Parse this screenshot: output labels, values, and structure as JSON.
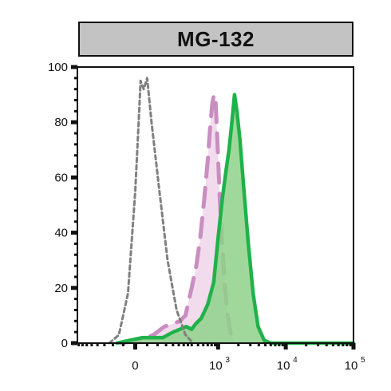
{
  "header": {
    "title": "MG-132"
  },
  "chart_data": {
    "type": "area",
    "title": "MG-132",
    "xlabel": "",
    "ylabel": "",
    "x_scale": "biexponential",
    "ylim": [
      0,
      100
    ],
    "y_ticks": [
      0,
      20,
      40,
      60,
      80,
      100
    ],
    "x_ticks": [
      {
        "value": 0,
        "base": "0",
        "exp": ""
      },
      {
        "value": 1000,
        "base": "10",
        "exp": "3"
      },
      {
        "value": 10000,
        "base": "10",
        "exp": "4"
      },
      {
        "value": 100000,
        "base": "10",
        "exp": "5"
      }
    ],
    "series": [
      {
        "name": "",
        "style": "dotted-line",
        "color": "#808080",
        "points": [
          [
            -120,
            0
          ],
          [
            -70,
            3
          ],
          [
            -30,
            18
          ],
          [
            0,
            55
          ],
          [
            15,
            82
          ],
          [
            22,
            95
          ],
          [
            35,
            92
          ],
          [
            50,
            96
          ],
          [
            70,
            80
          ],
          [
            110,
            55
          ],
          [
            160,
            30
          ],
          [
            230,
            12
          ],
          [
            320,
            3
          ],
          [
            420,
            0
          ]
        ]
      },
      {
        "name": "",
        "style": "dashed-filled",
        "color": "#c98ec0",
        "fill": "#efd5ea",
        "points": [
          [
            -60,
            0
          ],
          [
            20,
            1
          ],
          [
            80,
            3
          ],
          [
            140,
            6
          ],
          [
            200,
            7
          ],
          [
            260,
            8
          ],
          [
            320,
            10
          ],
          [
            400,
            20
          ],
          [
            470,
            28
          ],
          [
            540,
            38
          ],
          [
            620,
            52
          ],
          [
            700,
            66
          ],
          [
            760,
            78
          ],
          [
            820,
            87
          ],
          [
            870,
            90
          ],
          [
            920,
            87
          ],
          [
            980,
            72
          ],
          [
            1060,
            52
          ],
          [
            1140,
            38
          ],
          [
            1250,
            22
          ],
          [
            1380,
            10
          ],
          [
            1550,
            3
          ],
          [
            1800,
            0
          ]
        ]
      },
      {
        "name": "",
        "style": "solid-filled",
        "color": "#1fb24a",
        "fill": "#8fd18a",
        "points": [
          [
            -80,
            0
          ],
          [
            30,
            2
          ],
          [
            130,
            2
          ],
          [
            200,
            4
          ],
          [
            260,
            5
          ],
          [
            330,
            6
          ],
          [
            400,
            5
          ],
          [
            460,
            7
          ],
          [
            560,
            9
          ],
          [
            700,
            14
          ],
          [
            860,
            22
          ],
          [
            1000,
            38
          ],
          [
            1150,
            52
          ],
          [
            1300,
            62
          ],
          [
            1450,
            70
          ],
          [
            1600,
            80
          ],
          [
            1750,
            90
          ],
          [
            1900,
            84
          ],
          [
            2100,
            74
          ],
          [
            2400,
            56
          ],
          [
            2800,
            36
          ],
          [
            3300,
            18
          ],
          [
            3900,
            6
          ],
          [
            4800,
            1
          ],
          [
            6000,
            0
          ],
          [
            100000,
            0
          ]
        ]
      }
    ],
    "colors": {
      "axis": "#111111",
      "header_bg": "#c3c3c3"
    }
  }
}
